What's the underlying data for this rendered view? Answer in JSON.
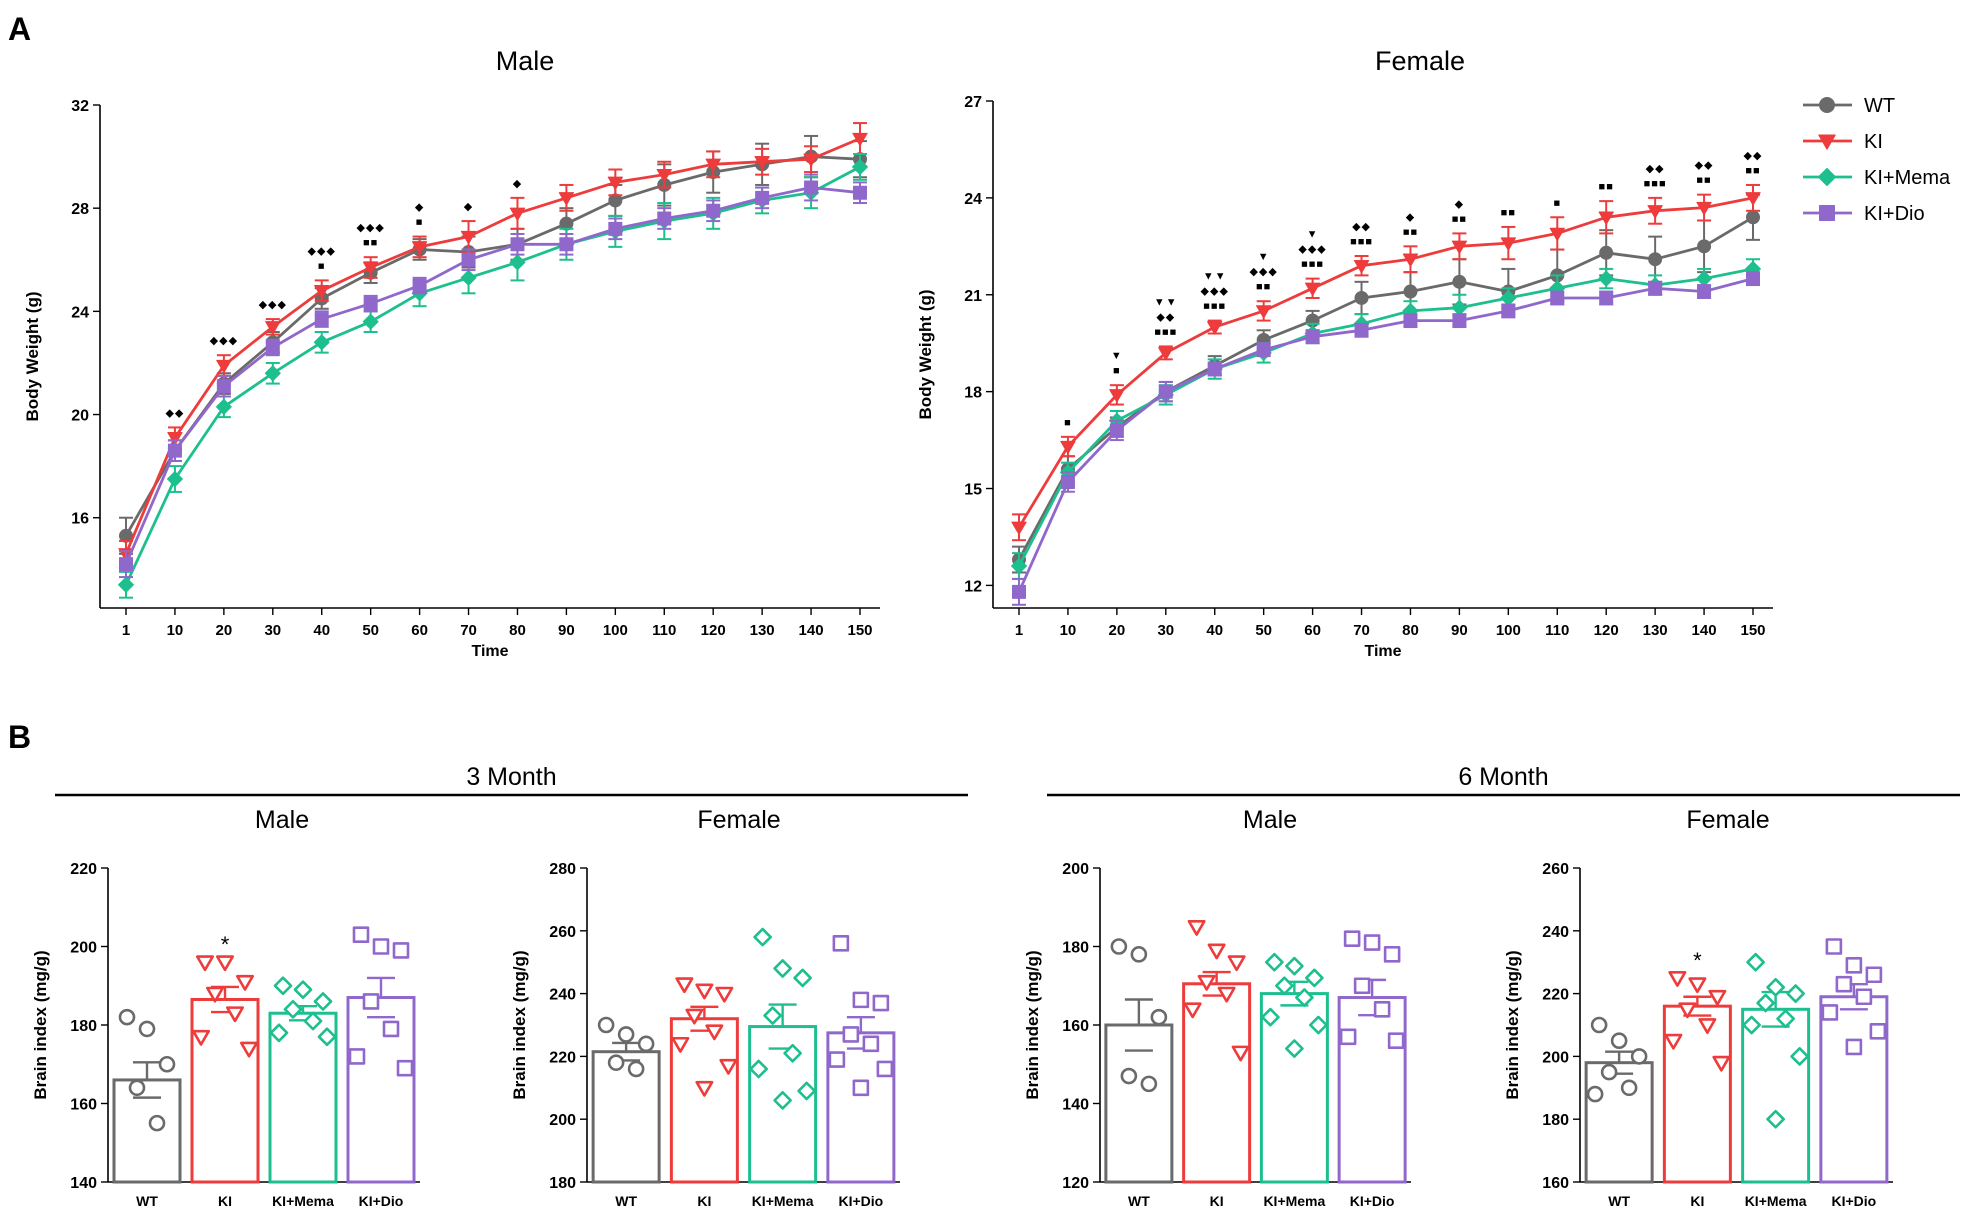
{
  "panel_labels": {
    "a": "A",
    "b": "B"
  },
  "colors": {
    "WT": "#6a6a6a",
    "KI": "#ee3b3b",
    "KI+Mema": "#1dbf8f",
    "KI+Dio": "#9068cc"
  },
  "chart_data": [
    {
      "id": "male_bw",
      "type": "line",
      "title": "Male",
      "xlabel": "Time",
      "ylabel": "Body Weight (g)",
      "categories": [
        "1",
        "10",
        "20",
        "30",
        "40",
        "50",
        "60",
        "70",
        "80",
        "90",
        "100",
        "110",
        "120",
        "130",
        "140",
        "150"
      ],
      "ylim": [
        12.5,
        32
      ],
      "yticks": [
        16,
        20,
        24,
        28,
        32
      ],
      "series": [
        {
          "name": "WT",
          "marker": "circle",
          "values": [
            15.3,
            18.6,
            21.2,
            22.8,
            24.5,
            25.5,
            26.4,
            26.3,
            26.6,
            27.4,
            28.3,
            28.9,
            29.4,
            29.7,
            30.0,
            29.9
          ],
          "err": [
            0.7,
            0.4,
            0.4,
            0.4,
            0.4,
            0.4,
            0.4,
            0.6,
            0.6,
            0.6,
            0.6,
            0.8,
            0.8,
            0.8,
            0.8,
            0.7
          ]
        },
        {
          "name": "KI",
          "marker": "triangle-down",
          "values": [
            14.6,
            19.1,
            21.9,
            23.4,
            24.8,
            25.7,
            26.5,
            26.9,
            27.8,
            28.4,
            29.0,
            29.3,
            29.7,
            29.8,
            29.9,
            30.7
          ],
          "err": [
            0.5,
            0.4,
            0.4,
            0.3,
            0.4,
            0.4,
            0.4,
            0.6,
            0.6,
            0.5,
            0.5,
            0.5,
            0.5,
            0.5,
            0.5,
            0.6
          ]
        },
        {
          "name": "KI+Mema",
          "marker": "diamond",
          "values": [
            13.4,
            17.5,
            20.3,
            21.6,
            22.8,
            23.6,
            24.7,
            25.3,
            25.9,
            26.6,
            27.1,
            27.5,
            27.8,
            28.3,
            28.6,
            29.6
          ],
          "err": [
            0.5,
            0.5,
            0.4,
            0.4,
            0.4,
            0.4,
            0.5,
            0.6,
            0.7,
            0.6,
            0.6,
            0.7,
            0.6,
            0.5,
            0.6,
            0.5
          ]
        },
        {
          "name": "KI+Dio",
          "marker": "square",
          "values": [
            14.2,
            18.6,
            21.1,
            22.6,
            23.7,
            24.3,
            25.0,
            26.0,
            26.6,
            26.6,
            27.2,
            27.6,
            27.9,
            28.4,
            28.8,
            28.6
          ],
          "err": [
            0.5,
            0.4,
            0.4,
            0.3,
            0.3,
            0.3,
            0.3,
            0.4,
            0.4,
            0.4,
            0.4,
            0.4,
            0.4,
            0.4,
            0.5,
            0.4
          ]
        }
      ],
      "significance": [
        {
          "category": "10",
          "rows": [
            "◆◆"
          ]
        },
        {
          "category": "20",
          "rows": [
            "◆◆◆"
          ]
        },
        {
          "category": "30",
          "rows": [
            "◆◆◆"
          ]
        },
        {
          "category": "40",
          "rows": [
            "◆◆◆",
            "■"
          ]
        },
        {
          "category": "50",
          "rows": [
            "◆◆◆",
            "■■"
          ]
        },
        {
          "category": "60",
          "rows": [
            "◆",
            "■"
          ]
        },
        {
          "category": "70",
          "rows": [
            "◆"
          ]
        },
        {
          "category": "80",
          "rows": [
            "◆"
          ]
        }
      ]
    },
    {
      "id": "female_bw",
      "type": "line",
      "title": "Female",
      "xlabel": "Time",
      "ylabel": "Body Weight (g)",
      "categories": [
        "1",
        "10",
        "20",
        "30",
        "40",
        "50",
        "60",
        "70",
        "80",
        "90",
        "100",
        "110",
        "120",
        "130",
        "140",
        "150"
      ],
      "ylim": [
        11.3,
        27
      ],
      "yticks": [
        12,
        15,
        18,
        21,
        24,
        27
      ],
      "series": [
        {
          "name": "WT",
          "marker": "circle",
          "values": [
            12.8,
            15.6,
            16.9,
            18.0,
            18.8,
            19.6,
            20.2,
            20.9,
            21.1,
            21.4,
            21.1,
            21.6,
            22.3,
            22.1,
            22.5,
            23.4
          ],
          "err": [
            0.4,
            0.4,
            0.3,
            0.3,
            0.3,
            0.3,
            0.3,
            0.5,
            0.6,
            0.7,
            0.7,
            0.8,
            0.7,
            0.7,
            0.8,
            0.7
          ]
        },
        {
          "name": "KI",
          "marker": "triangle-down",
          "values": [
            13.8,
            16.3,
            17.9,
            19.2,
            20.0,
            20.5,
            21.2,
            21.9,
            22.1,
            22.5,
            22.6,
            22.9,
            23.4,
            23.6,
            23.7,
            24.0
          ],
          "err": [
            0.4,
            0.3,
            0.3,
            0.2,
            0.2,
            0.3,
            0.3,
            0.3,
            0.4,
            0.4,
            0.5,
            0.5,
            0.5,
            0.4,
            0.4,
            0.4
          ]
        },
        {
          "name": "KI+Mema",
          "marker": "diamond",
          "values": [
            12.6,
            15.5,
            17.1,
            17.9,
            18.7,
            19.2,
            19.8,
            20.1,
            20.5,
            20.6,
            20.9,
            21.2,
            21.5,
            21.3,
            21.5,
            21.8
          ],
          "err": [
            0.4,
            0.3,
            0.3,
            0.3,
            0.3,
            0.3,
            0.3,
            0.3,
            0.3,
            0.4,
            0.3,
            0.4,
            0.3,
            0.3,
            0.3,
            0.3
          ]
        },
        {
          "name": "KI+Dio",
          "marker": "square",
          "values": [
            11.8,
            15.2,
            16.8,
            18.0,
            18.7,
            19.3,
            19.7,
            19.9,
            20.2,
            20.2,
            20.5,
            20.9,
            20.9,
            21.2,
            21.1,
            21.5
          ],
          "err": [
            0.4,
            0.3,
            0.3,
            0.3,
            0.2,
            0.2,
            0.2,
            0.2,
            0.2,
            0.2,
            0.2,
            0.2,
            0.2,
            0.2,
            0.2,
            0.2
          ]
        }
      ],
      "significance": [
        {
          "category": "10",
          "rows": [
            "■"
          ]
        },
        {
          "category": "20",
          "rows": [
            "▼",
            "■"
          ]
        },
        {
          "category": "30",
          "rows": [
            "▼▼",
            "◆◆",
            "■■■"
          ]
        },
        {
          "category": "40",
          "rows": [
            "▼▼",
            "◆◆◆",
            "■■■"
          ]
        },
        {
          "category": "50",
          "rows": [
            "▼",
            "◆◆◆",
            "■■"
          ]
        },
        {
          "category": "60",
          "rows": [
            "▼",
            "◆◆◆",
            "■■■"
          ]
        },
        {
          "category": "70",
          "rows": [
            "◆◆",
            "■■■"
          ]
        },
        {
          "category": "80",
          "rows": [
            "◆",
            "■■"
          ]
        },
        {
          "category": "90",
          "rows": [
            "◆",
            "■■"
          ]
        },
        {
          "category": "100",
          "rows": [
            "■■"
          ]
        },
        {
          "category": "110",
          "rows": [
            "■"
          ]
        },
        {
          "category": "120",
          "rows": [
            "■■"
          ]
        },
        {
          "category": "130",
          "rows": [
            "◆◆",
            "■■■"
          ]
        },
        {
          "category": "140",
          "rows": [
            "◆◆",
            "■■"
          ]
        },
        {
          "category": "150",
          "rows": [
            "◆◆",
            "■■"
          ]
        }
      ]
    },
    {
      "id": "b_3m_male",
      "type": "bar",
      "group": "3 Month",
      "title": "Male",
      "ylabel": "Brain index (mg/g)",
      "categories": [
        "WT",
        "KI",
        "KI+Mema",
        "KI+Dio"
      ],
      "values": [
        166,
        186.5,
        183,
        187
      ],
      "sem": [
        4.5,
        3.2,
        1.8,
        5
      ],
      "ylim": [
        140,
        220
      ],
      "yticks": [
        140,
        160,
        180,
        200,
        220
      ],
      "annotations": [
        "",
        "*",
        "",
        ""
      ],
      "points": [
        [
          182,
          179,
          170,
          164,
          155
        ],
        [
          196,
          196,
          191,
          188,
          183,
          177,
          174
        ],
        [
          190,
          189,
          186,
          184,
          181,
          178,
          177
        ],
        [
          203,
          200,
          199,
          186,
          179,
          172,
          169
        ]
      ]
    },
    {
      "id": "b_3m_female",
      "type": "bar",
      "group": "3 Month",
      "title": "Female",
      "ylabel": "Brain index (mg/g)",
      "categories": [
        "WT",
        "KI",
        "KI+Mema",
        "KI+Dio"
      ],
      "values": [
        221.5,
        232,
        229.5,
        227.5
      ],
      "sem": [
        2.8,
        3.8,
        7,
        5
      ],
      "ylim": [
        180,
        280
      ],
      "yticks": [
        180,
        200,
        220,
        240,
        260,
        280
      ],
      "annotations": [
        "",
        "",
        "",
        ""
      ],
      "points": [
        [
          230,
          227,
          224,
          218,
          216
        ],
        [
          243,
          241,
          240,
          233,
          228,
          224,
          217,
          210
        ],
        [
          258,
          248,
          245,
          233,
          221,
          216,
          209,
          206
        ],
        [
          256,
          238,
          237,
          227,
          224,
          219,
          216,
          210
        ]
      ]
    },
    {
      "id": "b_6m_male",
      "type": "bar",
      "group": "6 Month",
      "title": "Male",
      "ylabel": "Brain index (mg/g)",
      "categories": [
        "WT",
        "KI",
        "KI+Mema",
        "KI+Dio"
      ],
      "values": [
        160,
        170.5,
        168,
        167
      ],
      "sem": [
        6.5,
        3,
        3,
        4.5
      ],
      "ylim": [
        120,
        200
      ],
      "yticks": [
        120,
        140,
        160,
        180,
        200
      ],
      "annotations": [
        "",
        "",
        "",
        ""
      ],
      "points": [
        [
          180,
          178,
          162,
          147,
          145
        ],
        [
          185,
          179,
          176,
          171,
          168,
          164,
          153
        ],
        [
          176,
          175,
          172,
          170,
          167,
          162,
          160,
          154
        ],
        [
          182,
          181,
          178,
          170,
          164,
          157,
          156
        ]
      ]
    },
    {
      "id": "b_6m_female",
      "type": "bar",
      "group": "6 Month",
      "title": "Female",
      "ylabel": "Brain index (mg/g)",
      "categories": [
        "WT",
        "KI",
        "KI+Mema",
        "KI+Dio"
      ],
      "values": [
        198,
        216,
        215,
        219
      ],
      "sem": [
        3.5,
        3,
        5.5,
        4
      ],
      "ylim": [
        160,
        260
      ],
      "yticks": [
        160,
        180,
        200,
        220,
        240,
        260
      ],
      "annotations": [
        "",
        "*",
        "",
        ""
      ],
      "points": [
        [
          210,
          205,
          200,
          195,
          190,
          188
        ],
        [
          225,
          223,
          219,
          215,
          210,
          205,
          198
        ],
        [
          230,
          222,
          220,
          217,
          212,
          210,
          200,
          180
        ],
        [
          235,
          229,
          226,
          223,
          219,
          214,
          208,
          203
        ]
      ]
    }
  ],
  "groups": [
    "3 Month",
    "6 Month"
  ],
  "legend": [
    {
      "name": "WT",
      "marker": "circle"
    },
    {
      "name": "KI",
      "marker": "triangle-down"
    },
    {
      "name": "KI+Mema",
      "marker": "diamond"
    },
    {
      "name": "KI+Dio",
      "marker": "square"
    }
  ]
}
